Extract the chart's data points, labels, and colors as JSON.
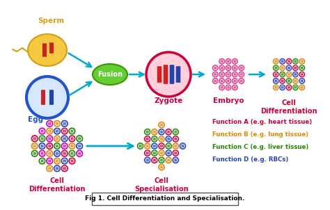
{
  "bg_color": "#ffffff",
  "fig_caption": "Fig 1. Cell Differentiation and Specialisation.",
  "sperm_label": "Sperm",
  "egg_label": "Egg",
  "fusion_label": "Fusion",
  "zygote_label": "Zygote",
  "embryo_label": "Embryo",
  "cell_diff_label_top": "Cell\nDifferentiation",
  "cell_diff_label_bottom": "Cell\nDifferentiation",
  "cell_spec_label": "Cell\nSpecialisation",
  "sperm_color": "#F5C842",
  "sperm_outline": "#D4A017",
  "egg_fill": "#D6E8FF",
  "egg_outline": "#2255CC",
  "fusion_color": "#66CC33",
  "fusion_outline": "#339900",
  "zygote_bg": "#FFD0DC",
  "zygote_outline": "#CC003A",
  "arrow_color": "#00AACC",
  "chrom_red": "#CC2222",
  "chrom_blue": "#2244AA",
  "label_color": "#CC003A",
  "sperm_label_color": "#D4A017",
  "egg_label_color": "#2255CC",
  "func_a_color": "#CC003A",
  "func_b_color": "#DD8800",
  "func_c_color": "#228800",
  "func_d_color": "#2244BB",
  "func_a_text": "Function A (e.g. heart tissue)",
  "func_b_text": "Function B (e.g. lung tissue)",
  "func_c_text": "Function C (e.g. liver tissue)",
  "func_d_text": "Function D (e.g. RBCs)",
  "embryo_cell_color": "#DD3388",
  "embryo_cell_outline": "#CC003A",
  "cell_inner_color": "#FFB3CC"
}
